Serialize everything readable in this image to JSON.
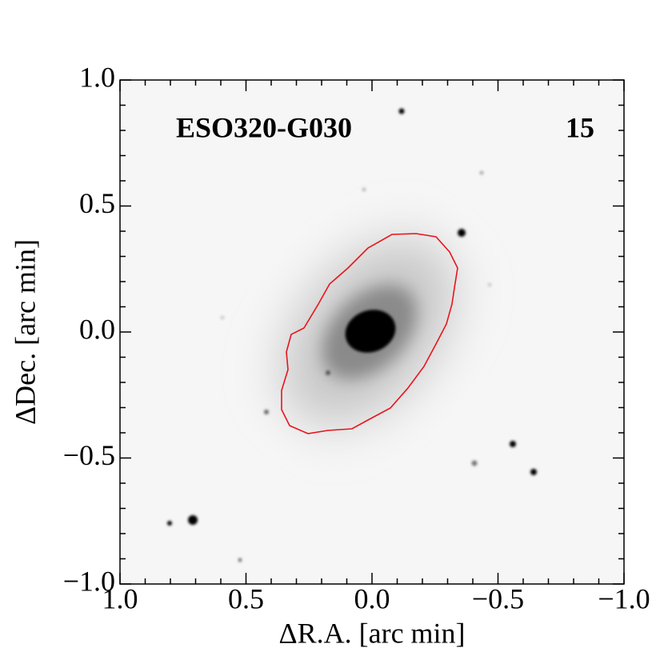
{
  "chart_data": {
    "type": "image",
    "title": "ESO320-G030",
    "annotation": "15",
    "xlabel": "ΔR.A. [arc min]",
    "ylabel": "ΔDec. [arc min]",
    "xlim": [
      1.0,
      -1.0
    ],
    "ylim": [
      -1.0,
      1.0
    ],
    "xticks": [
      {
        "value": 1.0,
        "label": "1.0"
      },
      0.5,
      {
        "value": 0.0,
        "label": "0.0"
      },
      {
        "value": -0.5,
        "label": "−0.5"
      },
      {
        "value": -1.0,
        "label": "−1.0"
      }
    ],
    "yticks": [
      {
        "value": -1.0,
        "label": "−1.0"
      },
      {
        "value": -0.5,
        "label": "−0.5"
      },
      {
        "value": 0.0,
        "label": "0.0"
      },
      0.5,
      {
        "value": 1.0,
        "label": "1.0"
      }
    ],
    "contour_color": "#e8141c"
  }
}
